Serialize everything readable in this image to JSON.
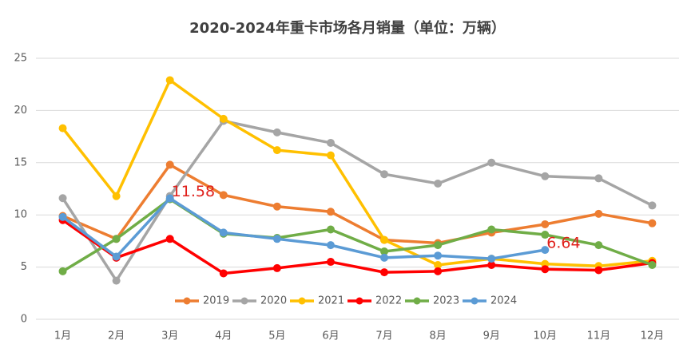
{
  "chart_data": {
    "type": "line",
    "title": "2020-2024年重卡市场各月销量（单位：万辆）",
    "categories": [
      "1月",
      "2月",
      "3月",
      "4月",
      "5月",
      "6月",
      "7月",
      "8月",
      "9月",
      "10月",
      "11月",
      "12月"
    ],
    "ylim": [
      0,
      25
    ],
    "yticks": [
      0,
      5,
      10,
      15,
      20,
      25
    ],
    "grid": true,
    "legend": "bottom",
    "series": [
      {
        "name": "2019",
        "color": "#ED7D31",
        "values": [
          9.9,
          7.7,
          14.8,
          11.9,
          10.8,
          10.3,
          7.6,
          7.3,
          8.3,
          9.1,
          10.1,
          9.2
        ]
      },
      {
        "name": "2020",
        "color": "#A5A5A5",
        "values": [
          11.6,
          3.7,
          11.8,
          19.0,
          17.9,
          16.9,
          13.9,
          13.0,
          15.0,
          13.7,
          13.5,
          10.9
        ]
      },
      {
        "name": "2021",
        "color": "#FFC000",
        "values": [
          18.3,
          11.8,
          22.9,
          19.2,
          16.2,
          15.7,
          7.6,
          5.2,
          5.8,
          5.3,
          5.1,
          5.6
        ]
      },
      {
        "name": "2022",
        "color": "#FF0000",
        "values": [
          9.5,
          5.9,
          7.7,
          4.4,
          4.9,
          5.5,
          4.5,
          4.6,
          5.2,
          4.8,
          4.7,
          5.4
        ]
      },
      {
        "name": "2023",
        "color": "#70AD47",
        "values": [
          4.6,
          7.7,
          11.5,
          8.2,
          7.8,
          8.6,
          6.5,
          7.1,
          8.6,
          8.1,
          7.1,
          5.2
        ]
      },
      {
        "name": "2024",
        "color": "#5B9BD5",
        "values": [
          9.8,
          6.0,
          11.58,
          8.3,
          7.7,
          7.1,
          5.9,
          6.1,
          5.8,
          6.64,
          null,
          null
        ],
        "value_labels": [
          null,
          null,
          "11.58",
          null,
          null,
          null,
          null,
          null,
          null,
          "6.64",
          null,
          null
        ]
      }
    ]
  }
}
